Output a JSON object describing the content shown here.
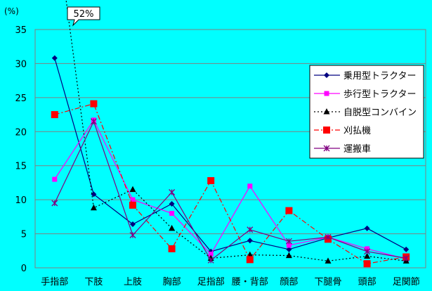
{
  "chart_data": {
    "type": "line",
    "yunit": "(%)",
    "ylim": [
      0,
      35
    ],
    "yticks": [
      0,
      5,
      10,
      15,
      20,
      25,
      30,
      35
    ],
    "categories": [
      "手指部",
      "下肢",
      "上肢",
      "胸部",
      "足指部",
      "腰・背部",
      "顔部",
      "下腿骨",
      "頭部",
      "足関節"
    ],
    "callout": "52%",
    "grid": "horizontal",
    "legend_position": "right",
    "series": [
      {
        "name": "乗用型トラクター",
        "color": "#000080",
        "marker": "diamond",
        "dash": "solid",
        "values": [
          30.8,
          10.8,
          6.4,
          9.4,
          2.4,
          4.0,
          2.7,
          4.4,
          5.8,
          2.7
        ]
      },
      {
        "name": "歩行型トラクター",
        "color": "#FF00FF",
        "marker": "square",
        "dash": "solid",
        "values": [
          13.0,
          21.7,
          10.0,
          8.0,
          2.0,
          12.0,
          3.3,
          4.5,
          2.8,
          1.3
        ]
      },
      {
        "name": "自脱型コンバイン",
        "color": "#000000",
        "marker": "triangle",
        "dash": "dotted",
        "values": [
          52,
          8.8,
          11.5,
          5.8,
          1.4,
          1.9,
          1.8,
          1.0,
          1.7,
          1.0
        ]
      },
      {
        "name": "刈払機",
        "color": "#FF0000",
        "marker": "bigsquare",
        "dash": "dashdot",
        "values": [
          22.5,
          24.1,
          9.2,
          2.8,
          12.8,
          1.2,
          8.4,
          4.2,
          0.6,
          1.6
        ]
      },
      {
        "name": "運搬車",
        "color": "#800080",
        "marker": "star",
        "dash": "solid",
        "values": [
          9.5,
          21.5,
          4.8,
          11.1,
          1.1,
          5.6,
          3.9,
          4.5,
          2.4,
          1.4
        ]
      }
    ]
  }
}
